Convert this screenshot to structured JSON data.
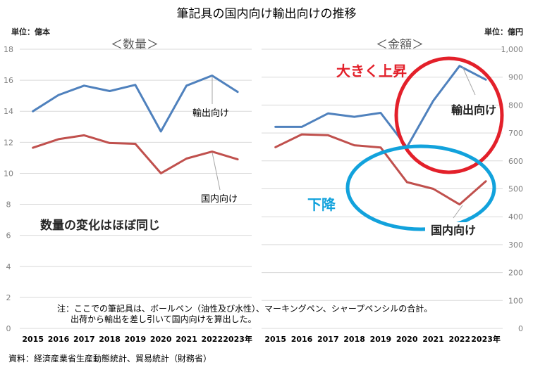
{
  "title": "筆記具の国内向け輸出向けの推移",
  "note": {
    "line1": "注：ここでの筆記具は、ボールペン（油性及び水性）、マーキングペン、シャープペンシルの合計。",
    "line2": "出荷から輸出を差し引いて国内向けを算出した。"
  },
  "source": "資料：経済産業省生産動態統計、貿易統計（財務省）",
  "colors": {
    "export": "#4f81bd",
    "domestic": "#c0504d",
    "annot_red": "#e3202a",
    "annot_blue": "#12a2dc"
  },
  "chart_data": [
    {
      "type": "line",
      "title": "＜数量＞",
      "unit_label": "単位：億本",
      "categories": [
        "2015",
        "2016",
        "2017",
        "2018",
        "2019",
        "2020",
        "2021",
        "2022",
        "2023年"
      ],
      "ylim": [
        0,
        18
      ],
      "yticks": [
        "0",
        "2",
        "4",
        "6",
        "8",
        "10",
        "12",
        "14",
        "16",
        "18"
      ],
      "ytick_values": [
        0,
        2,
        4,
        6,
        8,
        10,
        12,
        14,
        16,
        18
      ],
      "grid": true,
      "series": [
        {
          "name": "輸出向け",
          "key": "export",
          "values": [
            14.0,
            15.05,
            15.65,
            15.3,
            15.7,
            12.7,
            15.65,
            16.3,
            15.25
          ]
        },
        {
          "name": "国内向け",
          "key": "domestic",
          "values": [
            11.65,
            12.2,
            12.45,
            11.95,
            11.9,
            10.0,
            10.95,
            11.4,
            10.9
          ]
        }
      ],
      "annotation": "数量の変化はほぼ同じ"
    },
    {
      "type": "line",
      "title": "＜金額＞",
      "unit_label": "単位：億円",
      "categories": [
        "2015",
        "2016",
        "2017",
        "2018",
        "2019",
        "2020",
        "2021",
        "2022",
        "2023年"
      ],
      "ylim": [
        0,
        1000
      ],
      "yticks": [
        "0",
        "100",
        "200",
        "300",
        "400",
        "500",
        "600",
        "700",
        "800",
        "900",
        "1,000"
      ],
      "ytick_values": [
        0,
        100,
        200,
        300,
        400,
        500,
        600,
        700,
        800,
        900,
        1000
      ],
      "grid": true,
      "series": [
        {
          "name": "輸出向け",
          "key": "export",
          "values": [
            722,
            722,
            770,
            758,
            772,
            649,
            815,
            940,
            891
          ]
        },
        {
          "name": "国内向け",
          "key": "domestic",
          "values": [
            649,
            695,
            692,
            656,
            648,
            524,
            500,
            444,
            527
          ]
        }
      ],
      "annotations": {
        "rise": "大きく上昇",
        "fall": "下降"
      }
    }
  ]
}
